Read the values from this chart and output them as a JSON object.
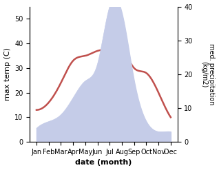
{
  "months": [
    "Jan",
    "Feb",
    "Mar",
    "Apr",
    "May",
    "Jun",
    "Jul",
    "Aug",
    "Sep",
    "Oct",
    "Nov",
    "Dec"
  ],
  "temperature": [
    13,
    16,
    24,
    33,
    35,
    37,
    38,
    38,
    30,
    28,
    20,
    10
  ],
  "precipitation": [
    4,
    6,
    8,
    13,
    18,
    23,
    40,
    38,
    18,
    6,
    3,
    3
  ],
  "temp_color": "#c0504d",
  "precip_fill_color": "#c5cce8",
  "temp_ylim": [
    0,
    55
  ],
  "precip_ylim": [
    0,
    40
  ],
  "temp_yticks": [
    0,
    10,
    20,
    30,
    40,
    50
  ],
  "precip_yticks": [
    0,
    10,
    20,
    30,
    40
  ],
  "xlabel": "date (month)",
  "ylabel_left": "max temp (C)",
  "ylabel_right": "med. precipitation\n(kg/m2)",
  "background_color": "#ffffff"
}
